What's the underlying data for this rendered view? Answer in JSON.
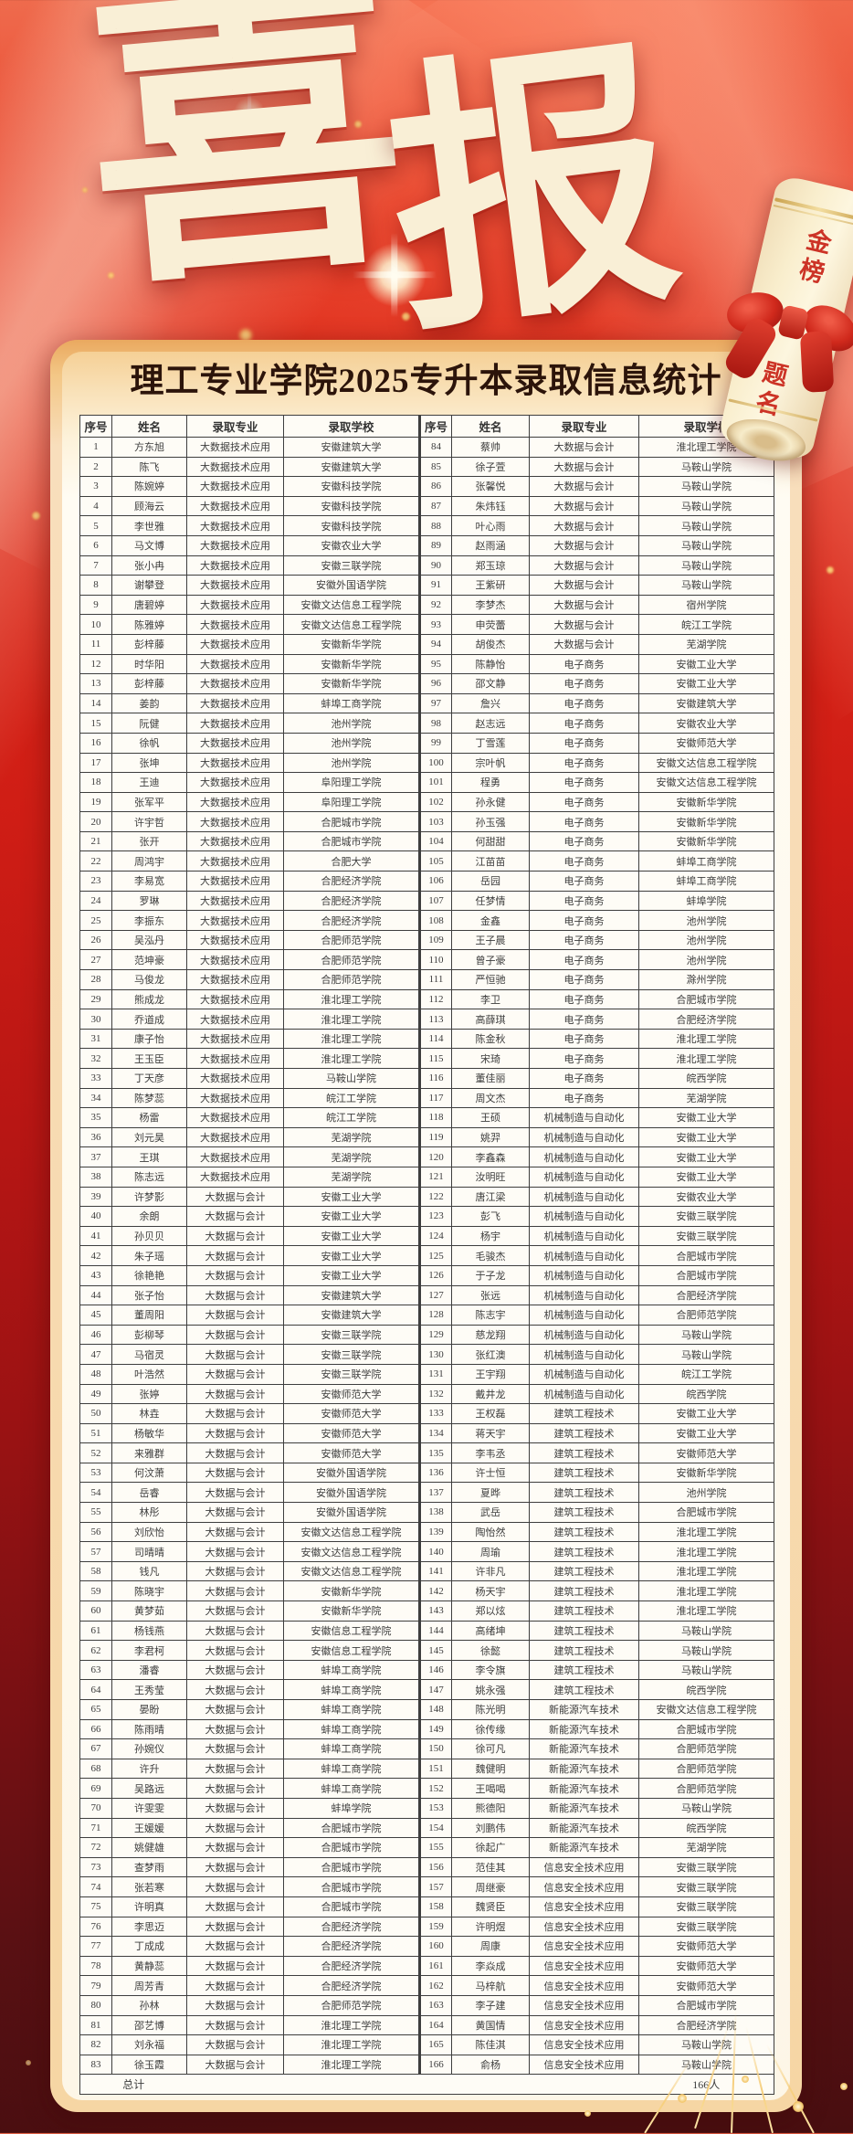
{
  "title": {
    "chars": [
      "喜",
      "报"
    ]
  },
  "subtitle": "理工专业学院2025专升本录取信息统计",
  "ribbon_scroll": {
    "line1": "金榜",
    "line2": "题名"
  },
  "colors": {
    "background_red": "#cf1d15",
    "background_maroon": "#480e10",
    "card_gold": "#f3c786",
    "card_cream": "#fdf2da",
    "title_ivory": "#f9efd6",
    "subtitle_ink": "#2c140a",
    "table_border": "#3e3e3e",
    "ribbon_red": "#cc3326"
  },
  "table": {
    "headers": [
      "序号",
      "姓名",
      "录取专业",
      "录取学校"
    ],
    "total_label": "总计",
    "total_value": "166人",
    "students": [
      [
        1,
        "方东旭",
        "大数据技术应用",
        "安徽建筑大学"
      ],
      [
        2,
        "陈飞",
        "大数据技术应用",
        "安徽建筑大学"
      ],
      [
        3,
        "陈婉婷",
        "大数据技术应用",
        "安徽科技学院"
      ],
      [
        4,
        "顾海云",
        "大数据技术应用",
        "安徽科技学院"
      ],
      [
        5,
        "李世雅",
        "大数据技术应用",
        "安徽科技学院"
      ],
      [
        6,
        "马文博",
        "大数据技术应用",
        "安徽农业大学"
      ],
      [
        7,
        "张小冉",
        "大数据技术应用",
        "安徽三联学院"
      ],
      [
        8,
        "谢攀登",
        "大数据技术应用",
        "安徽外国语学院"
      ],
      [
        9,
        "唐碧婷",
        "大数据技术应用",
        "安徽文达信息工程学院"
      ],
      [
        10,
        "陈雅婷",
        "大数据技术应用",
        "安徽文达信息工程学院"
      ],
      [
        11,
        "彭梓藤",
        "大数据技术应用",
        "安徽新华学院"
      ],
      [
        12,
        "时华阳",
        "大数据技术应用",
        "安徽新华学院"
      ],
      [
        13,
        "彭梓藤",
        "大数据技术应用",
        "安徽新华学院"
      ],
      [
        14,
        "姜韵",
        "大数据技术应用",
        "蚌埠工商学院"
      ],
      [
        15,
        "阮健",
        "大数据技术应用",
        "池州学院"
      ],
      [
        16,
        "徐帆",
        "大数据技术应用",
        "池州学院"
      ],
      [
        17,
        "张坤",
        "大数据技术应用",
        "池州学院"
      ],
      [
        18,
        "王迪",
        "大数据技术应用",
        "阜阳理工学院"
      ],
      [
        19,
        "张军平",
        "大数据技术应用",
        "阜阳理工学院"
      ],
      [
        20,
        "许宇哲",
        "大数据技术应用",
        "合肥城市学院"
      ],
      [
        21,
        "张开",
        "大数据技术应用",
        "合肥城市学院"
      ],
      [
        22,
        "周鸿宇",
        "大数据技术应用",
        "合肥大学"
      ],
      [
        23,
        "李易宽",
        "大数据技术应用",
        "合肥经济学院"
      ],
      [
        24,
        "罗琳",
        "大数据技术应用",
        "合肥经济学院"
      ],
      [
        25,
        "李振东",
        "大数据技术应用",
        "合肥经济学院"
      ],
      [
        26,
        "吴泓丹",
        "大数据技术应用",
        "合肥师范学院"
      ],
      [
        27,
        "范坤豪",
        "大数据技术应用",
        "合肥师范学院"
      ],
      [
        28,
        "马俊龙",
        "大数据技术应用",
        "合肥师范学院"
      ],
      [
        29,
        "熊成龙",
        "大数据技术应用",
        "淮北理工学院"
      ],
      [
        30,
        "乔道成",
        "大数据技术应用",
        "淮北理工学院"
      ],
      [
        31,
        "康子怡",
        "大数据技术应用",
        "淮北理工学院"
      ],
      [
        32,
        "王玉臣",
        "大数据技术应用",
        "淮北理工学院"
      ],
      [
        33,
        "丁天彦",
        "大数据技术应用",
        "马鞍山学院"
      ],
      [
        34,
        "陈梦蕊",
        "大数据技术应用",
        "皖江工学院"
      ],
      [
        35,
        "杨雷",
        "大数据技术应用",
        "皖江工学院"
      ],
      [
        36,
        "刘元昊",
        "大数据技术应用",
        "芜湖学院"
      ],
      [
        37,
        "王琪",
        "大数据技术应用",
        "芜湖学院"
      ],
      [
        38,
        "陈志远",
        "大数据技术应用",
        "芜湖学院"
      ],
      [
        39,
        "许梦影",
        "大数据与会计",
        "安徽工业大学"
      ],
      [
        40,
        "余朗",
        "大数据与会计",
        "安徽工业大学"
      ],
      [
        41,
        "孙贝贝",
        "大数据与会计",
        "安徽工业大学"
      ],
      [
        42,
        "朱子瑶",
        "大数据与会计",
        "安徽工业大学"
      ],
      [
        43,
        "徐艳艳",
        "大数据与会计",
        "安徽工业大学"
      ],
      [
        44,
        "张子怡",
        "大数据与会计",
        "安徽建筑大学"
      ],
      [
        45,
        "董周阳",
        "大数据与会计",
        "安徽建筑大学"
      ],
      [
        46,
        "彭柳琴",
        "大数据与会计",
        "安徽三联学院"
      ],
      [
        47,
        "马宿灵",
        "大数据与会计",
        "安徽三联学院"
      ],
      [
        48,
        "叶浩然",
        "大数据与会计",
        "安徽三联学院"
      ],
      [
        49,
        "张婷",
        "大数据与会计",
        "安徽师范大学"
      ],
      [
        50,
        "林垚",
        "大数据与会计",
        "安徽师范大学"
      ],
      [
        51,
        "杨敏华",
        "大数据与会计",
        "安徽师范大学"
      ],
      [
        52,
        "来雅群",
        "大数据与会计",
        "安徽师范大学"
      ],
      [
        53,
        "何汶萧",
        "大数据与会计",
        "安徽外国语学院"
      ],
      [
        54,
        "岳睿",
        "大数据与会计",
        "安徽外国语学院"
      ],
      [
        55,
        "林彤",
        "大数据与会计",
        "安徽外国语学院"
      ],
      [
        56,
        "刘欣怡",
        "大数据与会计",
        "安徽文达信息工程学院"
      ],
      [
        57,
        "司晴晴",
        "大数据与会计",
        "安徽文达信息工程学院"
      ],
      [
        58,
        "钱凡",
        "大数据与会计",
        "安徽文达信息工程学院"
      ],
      [
        59,
        "陈晓宇",
        "大数据与会计",
        "安徽新华学院"
      ],
      [
        60,
        "黄梦茹",
        "大数据与会计",
        "安徽新华学院"
      ],
      [
        61,
        "杨钱燕",
        "大数据与会计",
        "安徽信息工程学院"
      ],
      [
        62,
        "李君柯",
        "大数据与会计",
        "安徽信息工程学院"
      ],
      [
        63,
        "潘睿",
        "大数据与会计",
        "蚌埠工商学院"
      ],
      [
        64,
        "王秀莹",
        "大数据与会计",
        "蚌埠工商学院"
      ],
      [
        65,
        "晏盼",
        "大数据与会计",
        "蚌埠工商学院"
      ],
      [
        66,
        "陈雨晴",
        "大数据与会计",
        "蚌埠工商学院"
      ],
      [
        67,
        "孙婉仪",
        "大数据与会计",
        "蚌埠工商学院"
      ],
      [
        68,
        "许升",
        "大数据与会计",
        "蚌埠工商学院"
      ],
      [
        69,
        "吴路远",
        "大数据与会计",
        "蚌埠工商学院"
      ],
      [
        70,
        "许雯雯",
        "大数据与会计",
        "蚌埠学院"
      ],
      [
        71,
        "王媛媛",
        "大数据与会计",
        "合肥城市学院"
      ],
      [
        72,
        "姚健雄",
        "大数据与会计",
        "合肥城市学院"
      ],
      [
        73,
        "查梦雨",
        "大数据与会计",
        "合肥城市学院"
      ],
      [
        74,
        "张若寒",
        "大数据与会计",
        "合肥城市学院"
      ],
      [
        75,
        "许明真",
        "大数据与会计",
        "合肥城市学院"
      ],
      [
        76,
        "李思迈",
        "大数据与会计",
        "合肥经济学院"
      ],
      [
        77,
        "丁成成",
        "大数据与会计",
        "合肥经济学院"
      ],
      [
        78,
        "黄静蕊",
        "大数据与会计",
        "合肥经济学院"
      ],
      [
        79,
        "周芳青",
        "大数据与会计",
        "合肥经济学院"
      ],
      [
        80,
        "孙林",
        "大数据与会计",
        "合肥师范学院"
      ],
      [
        81,
        "邵艺博",
        "大数据与会计",
        "淮北理工学院"
      ],
      [
        82,
        "刘永福",
        "大数据与会计",
        "淮北理工学院"
      ],
      [
        83,
        "徐玉霞",
        "大数据与会计",
        "淮北理工学院"
      ],
      [
        84,
        "蔡帅",
        "大数据与会计",
        "淮北理工学院"
      ],
      [
        85,
        "徐子萱",
        "大数据与会计",
        "马鞍山学院"
      ],
      [
        86,
        "张馨悦",
        "大数据与会计",
        "马鞍山学院"
      ],
      [
        87,
        "朱炜钰",
        "大数据与会计",
        "马鞍山学院"
      ],
      [
        88,
        "叶心雨",
        "大数据与会计",
        "马鞍山学院"
      ],
      [
        89,
        "赵雨涵",
        "大数据与会计",
        "马鞍山学院"
      ],
      [
        90,
        "郑玉琼",
        "大数据与会计",
        "马鞍山学院"
      ],
      [
        91,
        "王紫研",
        "大数据与会计",
        "马鞍山学院"
      ],
      [
        92,
        "李梦杰",
        "大数据与会计",
        "宿州学院"
      ],
      [
        93,
        "申荧蕾",
        "大数据与会计",
        "皖江工学院"
      ],
      [
        94,
        "胡俊杰",
        "大数据与会计",
        "芜湖学院"
      ],
      [
        95,
        "陈静怡",
        "电子商务",
        "安徽工业大学"
      ],
      [
        96,
        "邵文静",
        "电子商务",
        "安徽工业大学"
      ],
      [
        97,
        "詹兴",
        "电子商务",
        "安徽建筑大学"
      ],
      [
        98,
        "赵志远",
        "电子商务",
        "安徽农业大学"
      ],
      [
        99,
        "丁雪莲",
        "电子商务",
        "安徽师范大学"
      ],
      [
        100,
        "宗叶帆",
        "电子商务",
        "安徽文达信息工程学院"
      ],
      [
        101,
        "程勇",
        "电子商务",
        "安徽文达信息工程学院"
      ],
      [
        102,
        "孙永健",
        "电子商务",
        "安徽新华学院"
      ],
      [
        103,
        "孙玉强",
        "电子商务",
        "安徽新华学院"
      ],
      [
        104,
        "何甜甜",
        "电子商务",
        "安徽新华学院"
      ],
      [
        105,
        "江苗苗",
        "电子商务",
        "蚌埠工商学院"
      ],
      [
        106,
        "岳园",
        "电子商务",
        "蚌埠工商学院"
      ],
      [
        107,
        "任梦情",
        "电子商务",
        "蚌埠学院"
      ],
      [
        108,
        "金鑫",
        "电子商务",
        "池州学院"
      ],
      [
        109,
        "王子晨",
        "电子商务",
        "池州学院"
      ],
      [
        110,
        "曾子豪",
        "电子商务",
        "池州学院"
      ],
      [
        111,
        "严恒驰",
        "电子商务",
        "滁州学院"
      ],
      [
        112,
        "李卫",
        "电子商务",
        "合肥城市学院"
      ],
      [
        113,
        "高薛琪",
        "电子商务",
        "合肥经济学院"
      ],
      [
        114,
        "陈金秋",
        "电子商务",
        "淮北理工学院"
      ],
      [
        115,
        "宋琦",
        "电子商务",
        "淮北理工学院"
      ],
      [
        116,
        "董佳丽",
        "电子商务",
        "皖西学院"
      ],
      [
        117,
        "周文杰",
        "电子商务",
        "芜湖学院"
      ],
      [
        118,
        "王硕",
        "机械制造与自动化",
        "安徽工业大学"
      ],
      [
        119,
        "姚羿",
        "机械制造与自动化",
        "安徽工业大学"
      ],
      [
        120,
        "李鑫森",
        "机械制造与自动化",
        "安徽工业大学"
      ],
      [
        121,
        "汝明旺",
        "机械制造与自动化",
        "安徽工业大学"
      ],
      [
        122,
        "唐江梁",
        "机械制造与自动化",
        "安徽农业大学"
      ],
      [
        123,
        "彭飞",
        "机械制造与自动化",
        "安徽三联学院"
      ],
      [
        124,
        "杨宇",
        "机械制造与自动化",
        "安徽三联学院"
      ],
      [
        125,
        "毛骏杰",
        "机械制造与自动化",
        "合肥城市学院"
      ],
      [
        126,
        "于子龙",
        "机械制造与自动化",
        "合肥城市学院"
      ],
      [
        127,
        "张远",
        "机械制造与自动化",
        "合肥经济学院"
      ],
      [
        128,
        "陈志宇",
        "机械制造与自动化",
        "合肥师范学院"
      ],
      [
        129,
        "慈龙翔",
        "机械制造与自动化",
        "马鞍山学院"
      ],
      [
        130,
        "张红澳",
        "机械制造与自动化",
        "马鞍山学院"
      ],
      [
        131,
        "王宇翔",
        "机械制造与自动化",
        "皖江工学院"
      ],
      [
        132,
        "戴井龙",
        "机械制造与自动化",
        "皖西学院"
      ],
      [
        133,
        "王权磊",
        "建筑工程技术",
        "安徽工业大学"
      ],
      [
        134,
        "蒋天宇",
        "建筑工程技术",
        "安徽工业大学"
      ],
      [
        135,
        "李韦丞",
        "建筑工程技术",
        "安徽师范大学"
      ],
      [
        136,
        "许士恒",
        "建筑工程技术",
        "安徽新华学院"
      ],
      [
        137,
        "夏晔",
        "建筑工程技术",
        "池州学院"
      ],
      [
        138,
        "武岳",
        "建筑工程技术",
        "合肥城市学院"
      ],
      [
        139,
        "陶怡然",
        "建筑工程技术",
        "淮北理工学院"
      ],
      [
        140,
        "周瑜",
        "建筑工程技术",
        "淮北理工学院"
      ],
      [
        141,
        "许非凡",
        "建筑工程技术",
        "淮北理工学院"
      ],
      [
        142,
        "杨天宇",
        "建筑工程技术",
        "淮北理工学院"
      ],
      [
        143,
        "郑以炫",
        "建筑工程技术",
        "淮北理工学院"
      ],
      [
        144,
        "高绪坤",
        "建筑工程技术",
        "马鞍山学院"
      ],
      [
        145,
        "徐懿",
        "建筑工程技术",
        "马鞍山学院"
      ],
      [
        146,
        "李令旗",
        "建筑工程技术",
        "马鞍山学院"
      ],
      [
        147,
        "姚永强",
        "建筑工程技术",
        "皖西学院"
      ],
      [
        148,
        "陈光明",
        "新能源汽车技术",
        "安徽文达信息工程学院"
      ],
      [
        149,
        "徐传缘",
        "新能源汽车技术",
        "合肥城市学院"
      ],
      [
        150,
        "徐可凡",
        "新能源汽车技术",
        "合肥师范学院"
      ],
      [
        151,
        "魏健明",
        "新能源汽车技术",
        "合肥师范学院"
      ],
      [
        152,
        "王喝喝",
        "新能源汽车技术",
        "合肥师范学院"
      ],
      [
        153,
        "熊德阳",
        "新能源汽车技术",
        "马鞍山学院"
      ],
      [
        154,
        "刘鹏伟",
        "新能源汽车技术",
        "皖西学院"
      ],
      [
        155,
        "徐起广",
        "新能源汽车技术",
        "芜湖学院"
      ],
      [
        156,
        "范佳其",
        "信息安全技术应用",
        "安徽三联学院"
      ],
      [
        157,
        "周继豪",
        "信息安全技术应用",
        "安徽三联学院"
      ],
      [
        158,
        "魏贤臣",
        "信息安全技术应用",
        "安徽三联学院"
      ],
      [
        159,
        "许明煜",
        "信息安全技术应用",
        "安徽三联学院"
      ],
      [
        160,
        "周康",
        "信息安全技术应用",
        "安徽师范大学"
      ],
      [
        161,
        "李焱成",
        "信息安全技术应用",
        "安徽师范大学"
      ],
      [
        162,
        "马梓航",
        "信息安全技术应用",
        "安徽师范大学"
      ],
      [
        163,
        "李子建",
        "信息安全技术应用",
        "合肥城市学院"
      ],
      [
        164,
        "黄国情",
        "信息安全技术应用",
        "合肥经济学院"
      ],
      [
        165,
        "陈佳淇",
        "信息安全技术应用",
        "马鞍山学院"
      ],
      [
        166,
        "俞杨",
        "信息安全技术应用",
        "马鞍山学院"
      ]
    ]
  }
}
